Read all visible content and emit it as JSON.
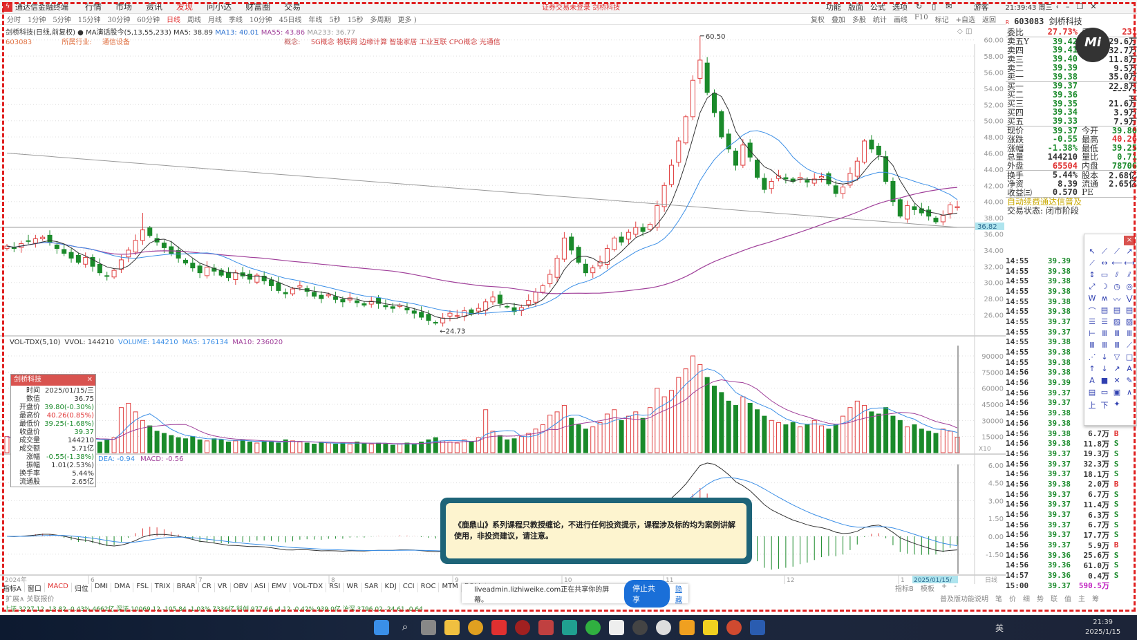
{
  "menubar": {
    "app_title": "通达信金融终端",
    "items": [
      "行情",
      "市场",
      "资讯",
      "发现",
      "问小达",
      "财富圈",
      "交易"
    ],
    "active": "发现",
    "notice": "证券交易未登录 剑桥科技",
    "right_items": [
      "功能",
      "版面",
      "公式",
      "选项"
    ],
    "user": "游客",
    "clock": "21:39:43 周三"
  },
  "periods": [
    "分时",
    "1分钟",
    "5分钟",
    "15分钟",
    "30分钟",
    "60分钟",
    "日线",
    "周线",
    "月线",
    "季线",
    "10分钟",
    "45日线",
    "年线",
    "5秒",
    "15秒",
    "多周期",
    "更多 )"
  ],
  "active_period": "日线",
  "chart_tools": [
    "复权",
    "叠加",
    "多股",
    "统计",
    "画线",
    "F10",
    "标记",
    "+自选",
    "返回"
  ],
  "info": {
    "title": "剑桥科技(日线,前复权)",
    "ma_name": "MA演话股今(5,13,55,233)",
    "ma5": "MA5: 38.89",
    "ma13": "MA13: 40.01",
    "ma55": "MA55: 43.86",
    "ma233": "MA233: 36.77"
  },
  "concepts": {
    "code": "603083",
    "industry_label": "所属行业:",
    "industry": "通信设备",
    "concept_label": "概念:",
    "list": "5G概念 物联网 边缘计算 智能家居 工业互联 CPO概念 光通信"
  },
  "colors": {
    "up": "#e04040",
    "down": "#1a8a2a",
    "ma5": "#333333",
    "ma13": "#3a8ee6",
    "ma55": "#a0409a",
    "ma233": "#999999"
  },
  "chart_data": {
    "type": "candlestick",
    "price_axis": [
      "60.00",
      "58.00",
      "56.00",
      "54.00",
      "52.00",
      "50.00",
      "48.00",
      "46.00",
      "44.00",
      "42.00",
      "40.00",
      "38.00",
      "36.00",
      "34.00",
      "32.00",
      "30.00",
      "28.00",
      "26.00"
    ],
    "ylim": [
      26,
      60
    ],
    "high_label": "60.50",
    "low_label": "24.73",
    "cursor_price": "36.82",
    "ma233_level": 36.82,
    "closes": [
      34.5,
      34.2,
      34.8,
      35.1,
      35.4,
      35.6,
      35.0,
      34.2,
      33.6,
      33.0,
      32.5,
      33.1,
      32.0,
      31.2,
      30.8,
      31.5,
      32.8,
      34.0,
      35.2,
      36.5,
      35.8,
      35.0,
      34.3,
      33.6,
      33.0,
      32.4,
      31.8,
      31.2,
      31.9,
      31.4,
      30.9,
      30.6,
      31.2,
      30.8,
      30.4,
      30.9,
      30.2,
      29.6,
      29.0,
      28.6,
      29.2,
      29.6,
      28.9,
      28.3,
      28.0,
      28.5,
      27.9,
      27.6,
      28.1,
      27.5,
      27.2,
      27.7,
      27.4,
      27.0,
      26.8,
      27.2,
      26.6,
      26.2,
      25.7,
      25.3,
      25.0,
      25.6,
      26.2,
      25.9,
      26.5,
      26.1,
      26.8,
      27.6,
      28.2,
      27.4,
      27.0,
      26.4,
      26.9,
      27.8,
      28.8,
      29.6,
      31.0,
      33.0,
      35.5,
      34.0,
      32.5,
      31.2,
      31.8,
      32.6,
      34.2,
      35.5,
      35.0,
      36.2,
      36.8,
      36.3,
      37.2,
      39.5,
      42.0,
      44.5,
      47.5,
      50.5,
      55.0,
      57.5,
      53.5,
      51.0,
      48.0,
      46.5,
      44.5,
      47.0,
      45.5,
      43.0,
      41.5,
      42.5,
      43.2,
      42.8,
      42.5,
      43.0,
      42.4,
      42.8,
      43.1,
      42.2,
      41.0,
      41.8,
      43.5,
      45.0,
      47.5,
      46.5,
      45.8,
      42.5,
      40.0,
      38.2,
      39.5,
      39.0,
      38.6,
      38.2,
      37.5,
      38.3,
      39.6,
      39.37
    ],
    "volumes": [
      15000,
      12000,
      14000,
      16000,
      13000,
      18000,
      12000,
      11000,
      14000,
      13000,
      12000,
      15000,
      11000,
      10000,
      12000,
      14000,
      42000,
      46000,
      38000,
      30000,
      25000,
      20000,
      18000,
      16000,
      14000,
      13000,
      15000,
      12000,
      11000,
      13000,
      12000,
      10000,
      11000,
      12000,
      10000,
      9000,
      11000,
      10000,
      9000,
      12000,
      11000,
      10000,
      9000,
      8000,
      10000,
      9000,
      8000,
      9000,
      8000,
      10000,
      9000,
      8000,
      9000,
      8000,
      7000,
      8000,
      9000,
      8000,
      10000,
      12000,
      14000,
      11000,
      10000,
      9000,
      12000,
      10000,
      14000,
      40000,
      20000,
      16000,
      12000,
      13000,
      15000,
      18000,
      22000,
      26000,
      35000,
      38000,
      44000,
      32000,
      26000,
      22000,
      24000,
      28000,
      36000,
      40000,
      30000,
      34000,
      38000,
      32000,
      42000,
      60000,
      52000,
      58000,
      70000,
      78000,
      90000,
      82000,
      70000,
      62000,
      56000,
      48000,
      44000,
      52000,
      46000,
      40000,
      34000,
      30000,
      28000,
      26000,
      28000,
      24000,
      26000,
      30000,
      25000,
      22000,
      26000,
      34000,
      42000,
      48000,
      44000,
      38000,
      36000,
      42000,
      34000,
      30000,
      24000,
      26000,
      22000,
      20000,
      18000,
      22000,
      20000,
      14421
    ],
    "vol_axis": [
      "90000",
      "75000",
      "60000",
      "45000",
      "30000",
      "15000"
    ],
    "vol_multiplier": "X10",
    "vol_max": 90000,
    "macd_axis": [
      "6.00",
      "4.50",
      "3.00",
      "1.50",
      "0.00",
      "-1.50"
    ],
    "date_labels": [
      "2024年",
      "6",
      "7",
      "8",
      "9",
      "10",
      "11",
      "12",
      "1"
    ],
    "cursor_date": "2025/01/15/",
    "period_label": "日线"
  },
  "vol_header": {
    "name": "VOL-TDX(5,10)",
    "vvol": "VVOL: 144210",
    "volume": "VOLUME: 144210",
    "ma5": "MA5: 176134",
    "ma10": "MA10: 236020"
  },
  "macd_header": {
    "dea": "DEA: -0.94",
    "macd": "MACD: -0.56"
  },
  "tooltip": {
    "title": "剑桥科技",
    "rows": [
      [
        "时间",
        "2025/01/15/三",
        "#333"
      ],
      [
        "数值",
        "36.75",
        "#333"
      ],
      [
        "开盘价",
        "39.80(-0.30%)",
        "#1a8a2a"
      ],
      [
        "最高价",
        "40.26(0.85%)",
        "#e03030"
      ],
      [
        "最低价",
        "39.25(-1.68%)",
        "#1a8a2a"
      ],
      [
        "收盘价",
        "39.37",
        "#1a8a2a"
      ],
      [
        "成交量",
        "144210",
        "#333"
      ],
      [
        "成交额",
        "5.71亿",
        "#333"
      ],
      [
        "涨幅",
        "-0.55(-1.38%)",
        "#1a8a2a"
      ],
      [
        "振幅",
        "1.01(2.53%)",
        "#333"
      ],
      [
        "换手率",
        "5.44%",
        "#333"
      ],
      [
        "流通股",
        "2.65亿",
        "#333"
      ]
    ]
  },
  "stock_header": {
    "code": "603083",
    "name": "剑桥科技"
  },
  "quote": {
    "weibi": [
      "委比",
      "27.73%",
      "委差",
      "231"
    ],
    "asks": [
      [
        "卖五Y",
        "39.42",
        "29.6万"
      ],
      [
        "卖四",
        "39.41",
        "32.7万"
      ],
      [
        "卖三",
        "39.40",
        "11.8万"
      ],
      [
        "卖二",
        "39.39",
        "9.5万"
      ],
      [
        "卖一",
        "39.38",
        "35.0万"
      ]
    ],
    "bids": [
      [
        "买一",
        "39.37",
        "22.8万"
      ],
      [
        "买二",
        "39.36",
        "153.1万"
      ],
      [
        "买三",
        "39.35",
        "21.6万"
      ],
      [
        "买四",
        "39.34",
        "3.9万"
      ],
      [
        "买五",
        "39.33",
        "7.9万"
      ]
    ],
    "stats": [
      [
        "现价",
        "39.37",
        "#1a8a2a",
        "今开",
        "39.80",
        "#1a8a2a"
      ],
      [
        "涨跌",
        "-0.55",
        "#1a8a2a",
        "最高",
        "40.26",
        "#e03030"
      ],
      [
        "涨幅",
        "-1.38%",
        "#1a8a2a",
        "最低",
        "39.25",
        "#1a8a2a"
      ],
      [
        "总量",
        "144210",
        "#333",
        "量比",
        "0.71",
        "#1a8a2a"
      ],
      [
        "外盘",
        "65504",
        "#e03030",
        "内盘",
        "78706",
        "#1a8a2a"
      ]
    ],
    "stats2": [
      [
        "换手",
        "5.44%",
        "股本",
        "2.68亿"
      ],
      [
        "净资",
        "8.39",
        "流通",
        "2.65亿"
      ],
      [
        "收益㈢",
        "0.570",
        "PE",
        ""
      ]
    ],
    "promo": "自动续费通达信普及",
    "trade_state": "交易状态: 闭市阶段"
  },
  "ticks": [
    [
      "14:55",
      "39.39",
      "",
      ""
    ],
    [
      "14:55",
      "39.38",
      "",
      ""
    ],
    [
      "14:55",
      "39.38",
      "",
      ""
    ],
    [
      "14:55",
      "39.38",
      "",
      ""
    ],
    [
      "14:55",
      "39.38",
      "",
      ""
    ],
    [
      "14:55",
      "39.38",
      "",
      ""
    ],
    [
      "14:55",
      "39.37",
      "",
      ""
    ],
    [
      "14:55",
      "39.37",
      "",
      ""
    ],
    [
      "14:55",
      "39.38",
      "",
      ""
    ],
    [
      "14:55",
      "39.38",
      "",
      ""
    ],
    [
      "14:55",
      "39.38",
      "",
      ""
    ],
    [
      "14:56",
      "39.38",
      "",
      ""
    ],
    [
      "14:56",
      "39.39",
      "",
      ""
    ],
    [
      "14:56",
      "39.37",
      "",
      ""
    ],
    [
      "14:56",
      "39.37",
      "",
      ""
    ],
    [
      "14:56",
      "39.38",
      "",
      ""
    ],
    [
      "14:56",
      "39.38",
      "",
      ""
    ],
    [
      "14:56",
      "39.38",
      "6.7万",
      "B"
    ],
    [
      "14:56",
      "39.38",
      "11.8万",
      "S"
    ],
    [
      "14:56",
      "39.37",
      "19.3万",
      "S"
    ],
    [
      "14:56",
      "39.37",
      "32.3万",
      "S"
    ],
    [
      "14:56",
      "39.37",
      "18.1万",
      "S"
    ],
    [
      "14:56",
      "39.38",
      "2.0万",
      "B"
    ],
    [
      "14:56",
      "39.37",
      "6.7万",
      "S"
    ],
    [
      "14:56",
      "39.37",
      "11.4万",
      "S"
    ],
    [
      "14:56",
      "39.37",
      "6.3万",
      "S"
    ],
    [
      "14:56",
      "39.37",
      "6.7万",
      "S"
    ],
    [
      "14:56",
      "39.37",
      "17.7万",
      "S"
    ],
    [
      "14:56",
      "39.37",
      "5.9万",
      "B"
    ],
    [
      "14:56",
      "39.36",
      "25.6万",
      "S"
    ],
    [
      "14:56",
      "39.36",
      "61.0万",
      "S"
    ],
    [
      "14:57",
      "39.36",
      "0.4万",
      "S"
    ],
    [
      "15:00",
      "39.37",
      "590.5万",
      ""
    ]
  ],
  "draw_tools": [
    "↖",
    "⟋",
    "⟋",
    "↗",
    "⟋",
    "↔",
    "⟵",
    "⟷",
    "↕",
    "▭",
    "⫽",
    "⫽",
    "⤢",
    "☽",
    "◷",
    "◎",
    "W",
    "ʍ",
    "〰",
    "⋁",
    "⌒",
    "▤",
    "▤",
    "▤",
    "☰",
    "☰",
    "▨",
    "▨",
    "⊢",
    "Ⅲ",
    "Ⅲ",
    "Ⅲ",
    "Ⅲ",
    "Ⅲ",
    "Ⅲ",
    "⟋",
    "⋰",
    "↓",
    "▽",
    "□",
    "↑",
    "↓",
    "↗",
    "A",
    "A",
    "■",
    "✕",
    "✎",
    "▤",
    "▭",
    "▣",
    "∧",
    "上",
    "下",
    "✦",
    ""
  ],
  "notice": "《鹿鼎山》系列课程只教授缠论，不进行任何投资提示，课程涉及标的均为案例讲解使用，非投资建议，请注意。",
  "share": {
    "text": "liveadmin.lizhiweike.com正在共享你的屏幕。",
    "stop": "停止共享",
    "hide": "隐藏"
  },
  "indicator_tabs": [
    "指标A",
    "窗口",
    "MACD",
    "归位",
    "DMI",
    "DMA",
    "FSL",
    "TRIX",
    "BRAR",
    "CR",
    "VR",
    "OBV",
    "ASI",
    "EMV",
    "VOL-TDX",
    "RSI",
    "WR",
    "SAR",
    "KDJ",
    "CCI",
    "ROC",
    "MTM",
    "BOLL"
  ],
  "indicator_active": "MACD",
  "ext_tabs": "扩展∧ 关联报价",
  "right_tabs": [
    "指标B",
    "模板",
    "+",
    "-"
  ],
  "right_tabs2": [
    "普及版功能说明",
    "笔",
    "价",
    "细",
    "势",
    "联",
    "值",
    "主",
    "筹"
  ],
  "status_bar": "上证 3227.12  -13.82  -0.43%  4662亿  深证 10069.12  -105.84  -1.03%  7336亿  科创 977.66  -4.12  -0.42%  939.0亿  沪深 3796.02  -24.61  -0.64",
  "taskbar": {
    "time": "21:39",
    "date": "2025/1/15",
    "ime": "英"
  },
  "logo_text": "Mi"
}
